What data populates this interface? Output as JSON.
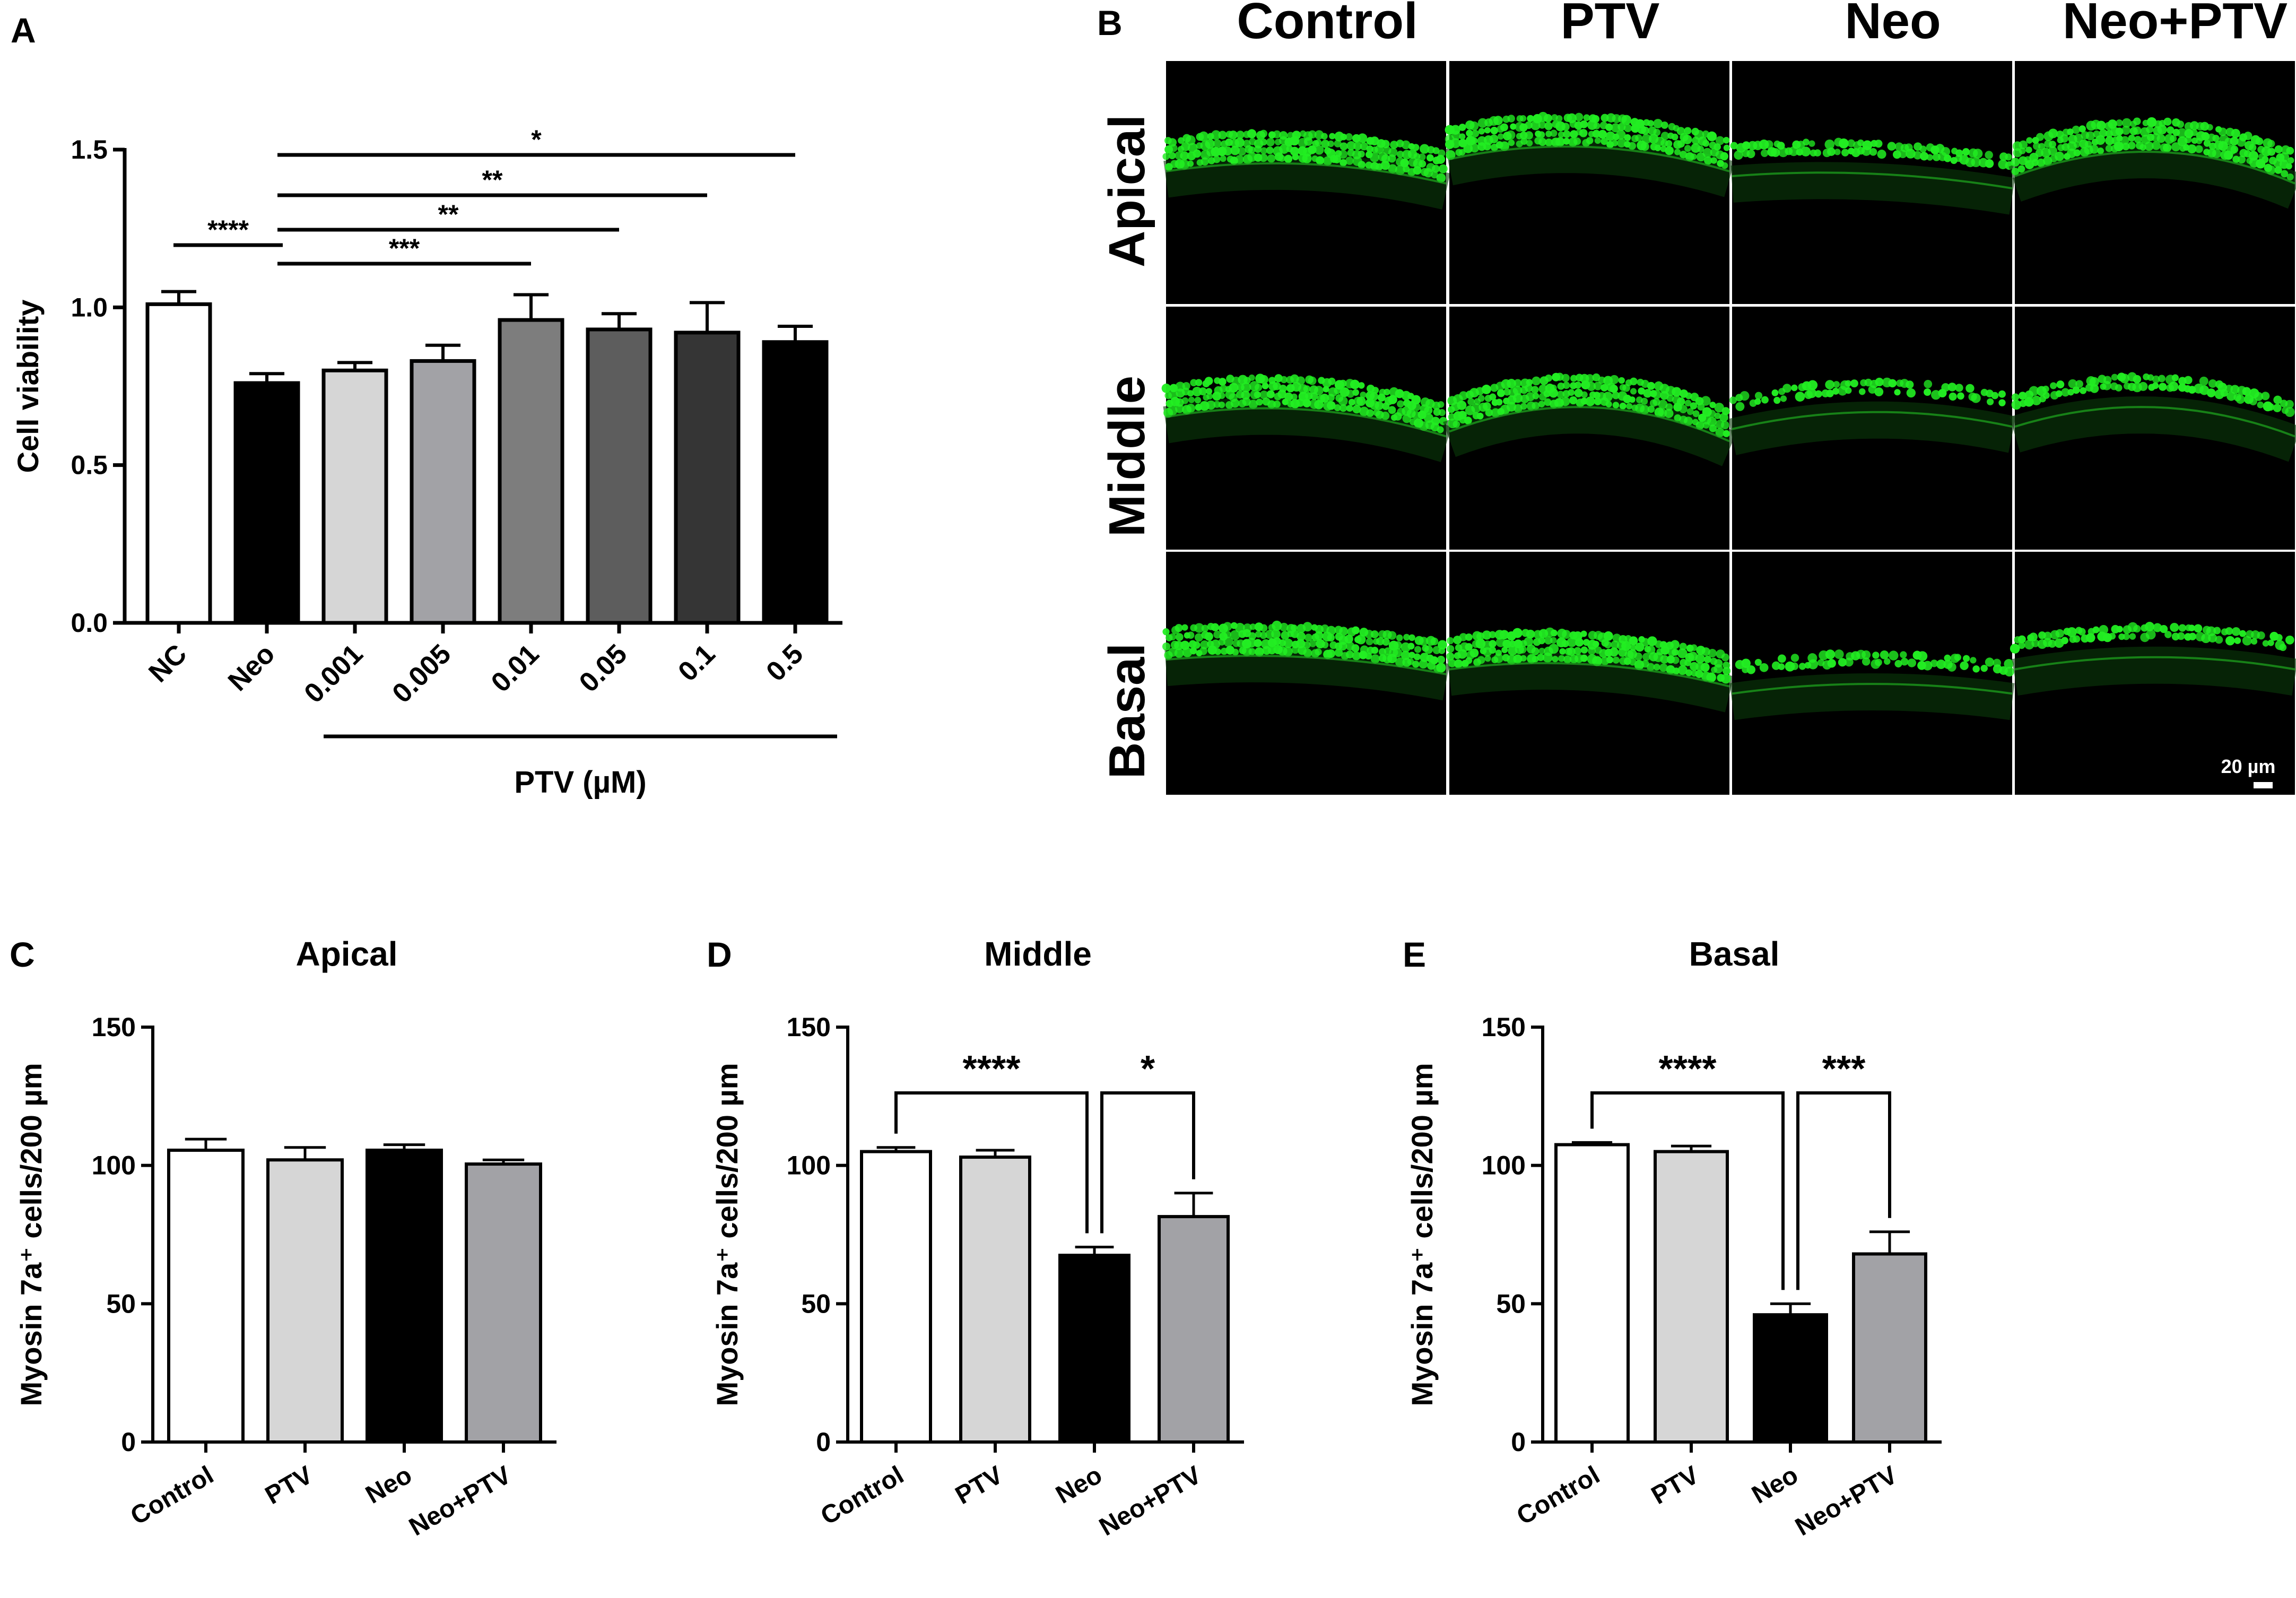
{
  "figure": {
    "panel_letters": [
      "A",
      "B",
      "C",
      "D",
      "E"
    ]
  },
  "chart_data": [
    {
      "panel": "A",
      "type": "bar",
      "title": "",
      "ylabel": "Cell viability",
      "xlabel": "",
      "ylim": [
        0,
        1.5
      ],
      "yticks": [
        "0.0",
        "0.5",
        "1.0",
        "1.5"
      ],
      "categories": [
        "NC",
        "Neo",
        "0.001",
        "0.005",
        "0.01",
        "0.05",
        "0.1",
        "0.5"
      ],
      "values": [
        1.01,
        0.76,
        0.8,
        0.83,
        0.96,
        0.93,
        0.92,
        0.89
      ],
      "errors": [
        0.04,
        0.03,
        0.025,
        0.05,
        0.08,
        0.05,
        0.095,
        0.05
      ],
      "fills": [
        "#ffffff",
        "#000000",
        "#d6d6d6",
        "#a2a2a6",
        "#7d7d7d",
        "#5d5d5d",
        "#353535",
        "#000000"
      ],
      "group_label": "PTV (µM)",
      "group_categories": [
        "0.001",
        "0.005",
        "0.01",
        "0.05",
        "0.1",
        "0.5"
      ],
      "significance": [
        {
          "from": "NC",
          "to": "Neo",
          "label": "****"
        },
        {
          "from": "Neo",
          "to": "0.01",
          "label": "***"
        },
        {
          "from": "Neo",
          "to": "0.05",
          "label": "**"
        },
        {
          "from": "Neo",
          "to": "0.1",
          "label": "**"
        },
        {
          "from": "Neo",
          "to": "0.5",
          "label": "*"
        }
      ]
    },
    {
      "panel": "C",
      "type": "bar",
      "title": "Apical",
      "ylabel": "Myosin 7a⁺ cells/200 µm",
      "ylim": [
        0,
        150
      ],
      "yticks": [
        "0",
        "50",
        "100",
        "150"
      ],
      "categories": [
        "Control",
        "PTV",
        "Neo",
        "Neo+PTV"
      ],
      "values": [
        105.5,
        102,
        105.5,
        100.5
      ],
      "errors": [
        4,
        4.5,
        2,
        1.5
      ],
      "fills": [
        "#ffffff",
        "#d6d6d6",
        "#000000",
        "#a2a2a6"
      ],
      "significance": []
    },
    {
      "panel": "D",
      "type": "bar",
      "title": "Middle",
      "ylabel": "Myosin 7a⁺ cells/200 µm",
      "ylim": [
        0,
        150
      ],
      "yticks": [
        "0",
        "50",
        "100",
        "150"
      ],
      "categories": [
        "Control",
        "PTV",
        "Neo",
        "Neo+PTV"
      ],
      "values": [
        105,
        103,
        67.5,
        81.5
      ],
      "errors": [
        1.5,
        2.5,
        3,
        8.5
      ],
      "fills": [
        "#ffffff",
        "#d6d6d6",
        "#000000",
        "#a2a2a6"
      ],
      "significance": [
        {
          "from": "Control",
          "to": "Neo",
          "label": "****"
        },
        {
          "from": "Neo",
          "to": "Neo+PTV",
          "label": "*"
        }
      ]
    },
    {
      "panel": "E",
      "type": "bar",
      "title": "Basal",
      "ylabel": "Myosin 7a⁺ cells/200 µm",
      "ylim": [
        0,
        150
      ],
      "yticks": [
        "0",
        "50",
        "100",
        "150"
      ],
      "categories": [
        "Control",
        "PTV",
        "Neo",
        "Neo+PTV"
      ],
      "values": [
        107.5,
        105,
        46,
        68
      ],
      "errors": [
        0.8,
        2,
        4,
        8
      ],
      "fills": [
        "#ffffff",
        "#d6d6d6",
        "#000000",
        "#a2a2a6"
      ],
      "significance": [
        {
          "from": "Control",
          "to": "Neo",
          "label": "****"
        },
        {
          "from": "Neo",
          "to": "Neo+PTV",
          "label": "***"
        }
      ]
    }
  ],
  "micrograph": {
    "panel": "B",
    "columns": [
      "Control",
      "PTV",
      "Neo",
      "Neo+PTV"
    ],
    "rows": [
      "Apical",
      "Middle",
      "Basal"
    ],
    "scale_bar": "20 µm",
    "stain_color": "#22ee22"
  }
}
